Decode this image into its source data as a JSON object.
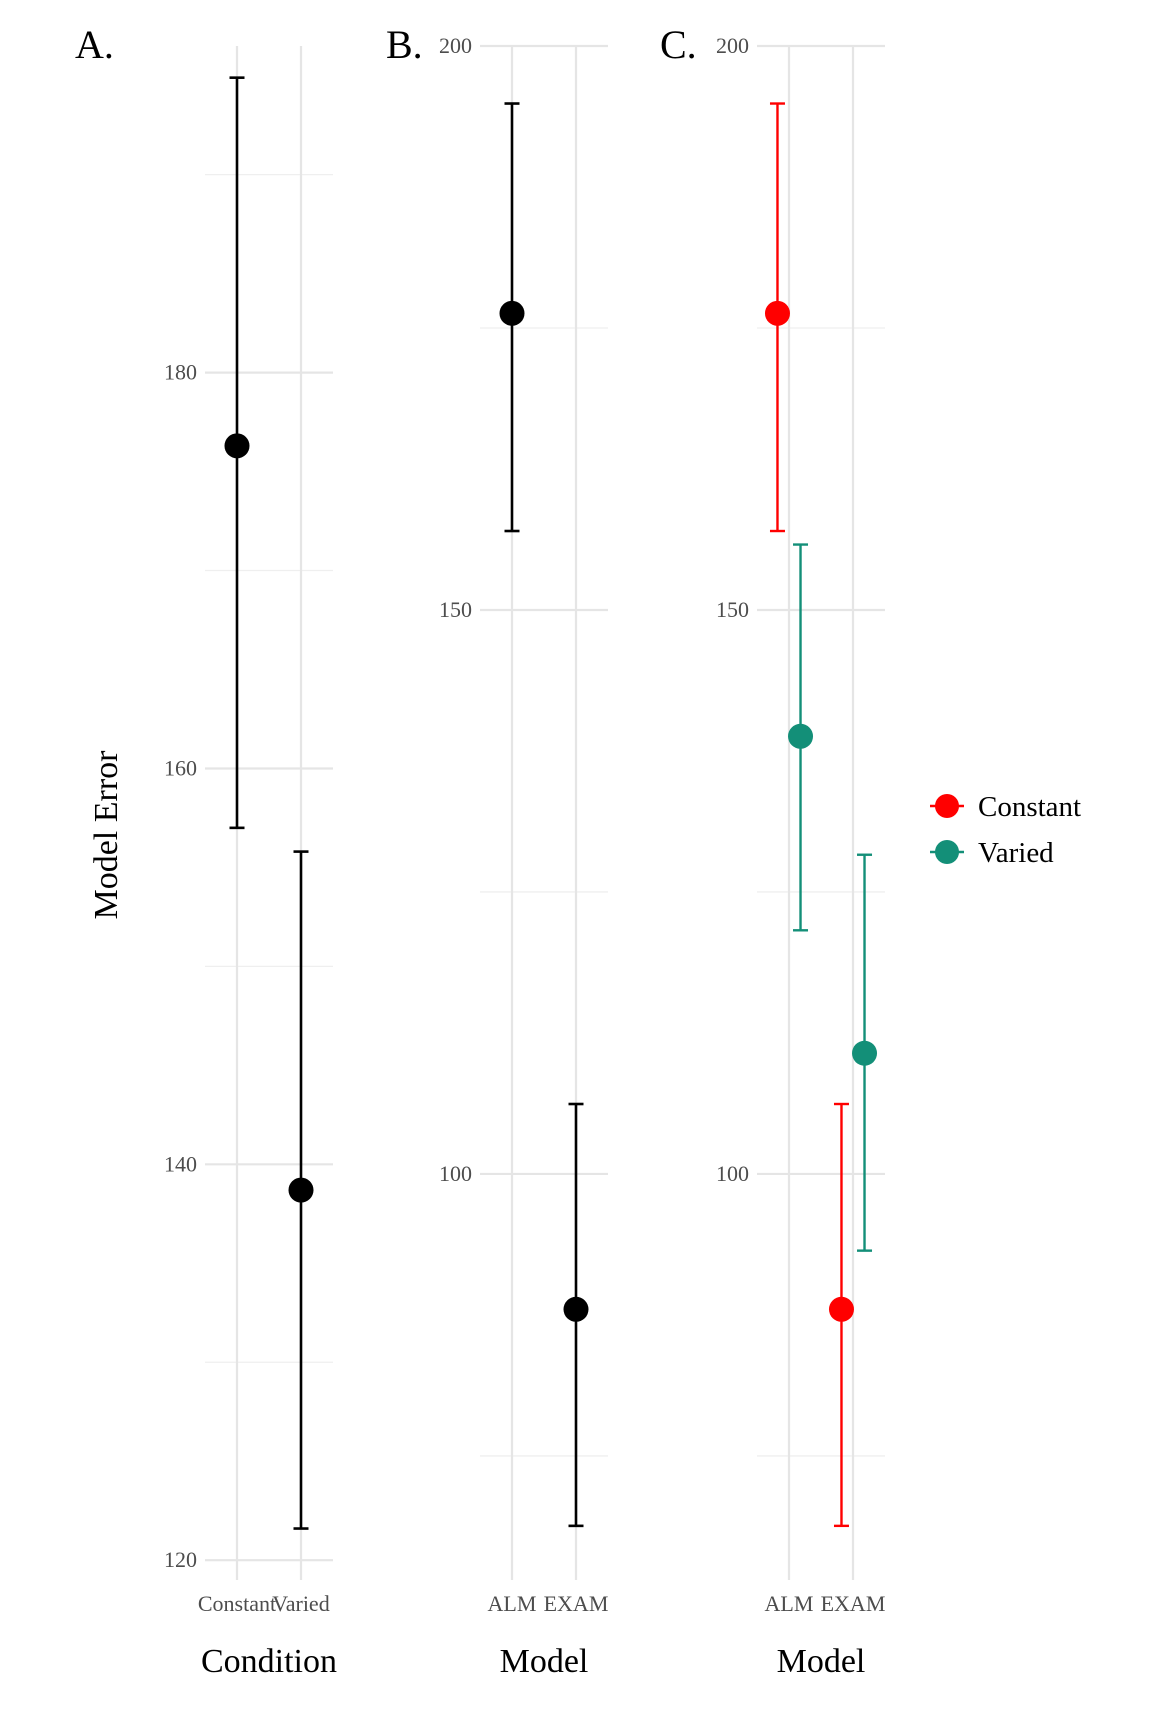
{
  "chart_data": [
    {
      "type": "scatter",
      "panel": "A.",
      "xlabel": "Condition",
      "ylabel": "Model Error",
      "categories": [
        "Constant",
        "Varied"
      ],
      "ylim": [
        119,
        196.5
      ],
      "yticks": [
        120,
        140,
        160,
        180
      ],
      "series": [
        {
          "color": "#000000",
          "points": [
            {
              "x": "Constant",
              "y": 176.3,
              "lower": 157.0,
              "upper": 194.9
            },
            {
              "x": "Varied",
              "y": 138.7,
              "lower": 121.6,
              "upper": 155.8
            }
          ]
        }
      ]
    },
    {
      "type": "scatter",
      "panel": "B.",
      "xlabel": "Model",
      "ylabel": "",
      "categories": [
        "ALM",
        "EXAM"
      ],
      "ylim": [
        64,
        200
      ],
      "yticks": [
        100,
        150,
        200
      ],
      "series": [
        {
          "color": "#000000",
          "points": [
            {
              "x": "ALM",
              "y": 176.3,
              "lower": 157.0,
              "upper": 194.9
            },
            {
              "x": "EXAM",
              "y": 88.0,
              "lower": 68.8,
              "upper": 106.2
            }
          ]
        }
      ]
    },
    {
      "type": "scatter",
      "panel": "C.",
      "xlabel": "Model",
      "ylabel": "",
      "categories": [
        "ALM",
        "EXAM"
      ],
      "ylim": [
        64,
        200
      ],
      "yticks": [
        100,
        150,
        200
      ],
      "legend": {
        "position": "right"
      },
      "series": [
        {
          "name": "Constant",
          "color": "#ff0000",
          "offset": -0.09,
          "points": [
            {
              "x": "ALM",
              "y": 176.3,
              "lower": 157.0,
              "upper": 194.9
            },
            {
              "x": "EXAM",
              "y": 88.0,
              "lower": 68.8,
              "upper": 106.2
            }
          ]
        },
        {
          "name": "Varied",
          "color": "#138f78",
          "offset": 0.09,
          "points": [
            {
              "x": "ALM",
              "y": 138.8,
              "lower": 121.6,
              "upper": 155.8
            },
            {
              "x": "EXAM",
              "y": 110.7,
              "lower": 93.2,
              "upper": 128.3
            }
          ]
        }
      ]
    }
  ]
}
